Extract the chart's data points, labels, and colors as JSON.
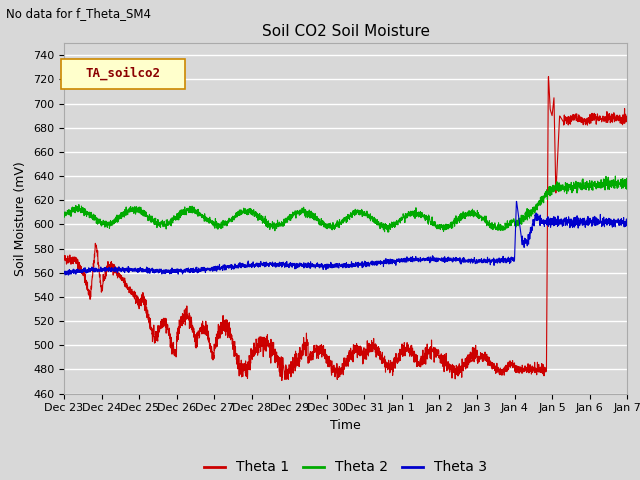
{
  "title": "Soil CO2 Soil Moisture",
  "subtitle": "No data for f_Theta_SM4",
  "ylabel": "Soil Moisture (mV)",
  "xlabel": "Time",
  "ylim": [
    460,
    750
  ],
  "yticks": [
    460,
    480,
    500,
    520,
    540,
    560,
    580,
    600,
    620,
    640,
    660,
    680,
    700,
    720,
    740
  ],
  "x_labels": [
    "Dec 23",
    "Dec 24",
    "Dec 25",
    "Dec 26",
    "Dec 27",
    "Dec 28",
    "Dec 29",
    "Dec 30",
    "Dec 31",
    "Jan 1",
    "Jan 2",
    "Jan 3",
    "Jan 4",
    "Jan 5",
    "Jan 6",
    "Jan 7"
  ],
  "bg_color": "#d8d8d8",
  "plot_bg_color": "#d8d8d8",
  "grid_color": "#ffffff",
  "line_colors": {
    "theta1": "#cc0000",
    "theta2": "#00aa00",
    "theta3": "#0000cc"
  },
  "legend_box_color": "#ffffcc",
  "legend_box_edge": "#cc8800",
  "legend_box_text": "TA_soilco2",
  "legend_entries": [
    "Theta 1",
    "Theta 2",
    "Theta 3"
  ]
}
